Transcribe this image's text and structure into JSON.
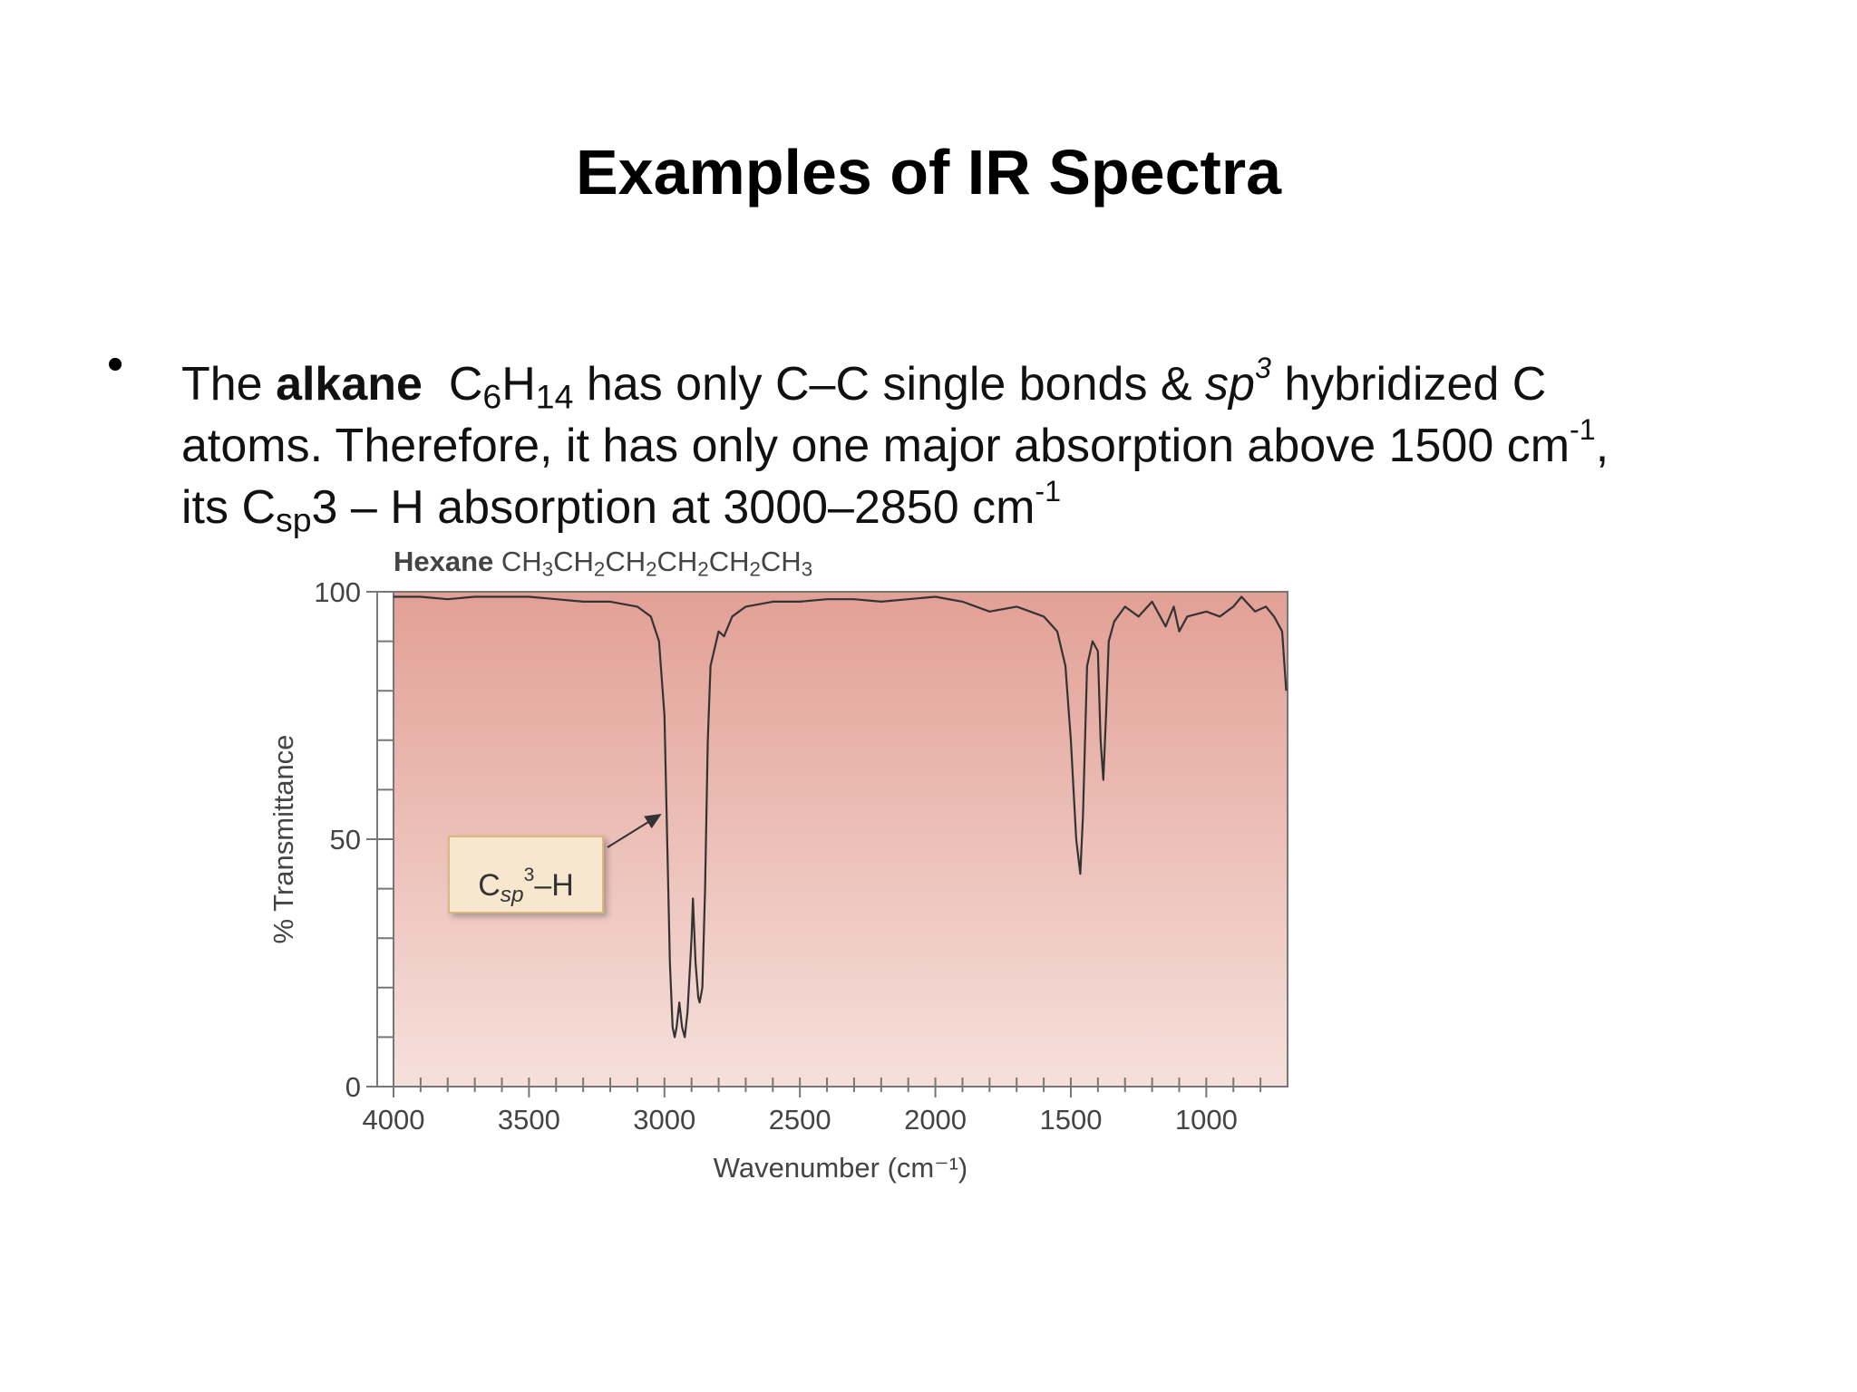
{
  "title": "Examples of IR Spectra",
  "bullet": "•",
  "lines": [
    [
      {
        "text": "The ",
        "style": "normal"
      },
      {
        "text": "alkane",
        "style": "bold"
      },
      {
        "text": "  C",
        "style": "normal"
      },
      {
        "text": "6",
        "style": "sub"
      },
      {
        "text": "H",
        "style": "normal"
      },
      {
        "text": "14",
        "style": "sub"
      },
      {
        "text": " has only C–C single bonds & ",
        "style": "normal"
      },
      {
        "text": "sp",
        "style": "italic"
      },
      {
        "text": "3",
        "style": "italic-sup"
      },
      {
        "text": " hybridized C",
        "style": "normal"
      }
    ],
    [
      {
        "text": "atoms. Therefore, it has only one major absorption above 1500 cm",
        "style": "normal"
      },
      {
        "text": "-1",
        "style": "sup"
      },
      {
        "text": ",",
        "style": "normal"
      }
    ],
    [
      {
        "text": "its C",
        "style": "normal"
      },
      {
        "text": "sp",
        "style": "sub"
      },
      {
        "text": "3 – H absorption at 3000–2850 cm",
        "style": "normal"
      },
      {
        "text": "-1",
        "style": "sup"
      }
    ]
  ],
  "chart_data": {
    "type": "line",
    "title_runs": [
      {
        "text": "Hexane",
        "style": "bold"
      },
      {
        "text": " CH",
        "style": "normal"
      },
      {
        "text": "3",
        "style": "sub"
      },
      {
        "text": "CH",
        "style": "normal"
      },
      {
        "text": "2",
        "style": "sub"
      },
      {
        "text": "CH",
        "style": "normal"
      },
      {
        "text": "2",
        "style": "sub"
      },
      {
        "text": "CH",
        "style": "normal"
      },
      {
        "text": "2",
        "style": "sub"
      },
      {
        "text": "CH",
        "style": "normal"
      },
      {
        "text": "2",
        "style": "sub"
      },
      {
        "text": "CH",
        "style": "normal"
      },
      {
        "text": "3",
        "style": "sub"
      }
    ],
    "xlabel": "Wavenumber (cm⁻¹)",
    "ylabel": "% Transmittance",
    "annotation_runs": [
      {
        "text": "C",
        "style": "normal"
      },
      {
        "text": "sp",
        "style": "italic-sub"
      },
      {
        "text": "3",
        "style": "sup"
      },
      {
        "text": "–H",
        "style": "normal"
      }
    ],
    "color": "#333333",
    "xlim": [
      4000,
      700
    ],
    "ylim": [
      0,
      100
    ],
    "xticks": [
      4000,
      3500,
      3000,
      2500,
      2000,
      1500,
      1000
    ],
    "xminorticks": [
      3900,
      3800,
      3700,
      3600,
      3400,
      3300,
      3200,
      3100,
      2900,
      2800,
      2700,
      2600,
      2400,
      2300,
      2200,
      2100,
      1900,
      1800,
      1700,
      1600,
      1400,
      1300,
      1200,
      1100,
      900,
      800
    ],
    "yticks": [
      0,
      50,
      100
    ],
    "yminorticks": [
      10,
      20,
      30,
      40,
      60,
      70,
      80,
      90
    ],
    "x": [
      4000,
      3900,
      3800,
      3700,
      3600,
      3500,
      3400,
      3300,
      3200,
      3100,
      3050,
      3020,
      3000,
      2990,
      2980,
      2970,
      2962,
      2955,
      2945,
      2935,
      2925,
      2915,
      2900,
      2895,
      2885,
      2875,
      2870,
      2860,
      2850,
      2840,
      2830,
      2800,
      2780,
      2750,
      2700,
      2600,
      2500,
      2400,
      2300,
      2200,
      2100,
      2000,
      1900,
      1800,
      1700,
      1650,
      1600,
      1550,
      1520,
      1500,
      1480,
      1465,
      1455,
      1440,
      1420,
      1400,
      1390,
      1380,
      1370,
      1360,
      1340,
      1300,
      1250,
      1200,
      1150,
      1120,
      1100,
      1070,
      1000,
      950,
      900,
      870,
      820,
      780,
      750,
      720,
      705
    ],
    "values": [
      99,
      99,
      98.5,
      99,
      99,
      99,
      98.5,
      98,
      98,
      97,
      95,
      90,
      75,
      50,
      25,
      12,
      10,
      12,
      17,
      12,
      10,
      15,
      30,
      38,
      25,
      18,
      17,
      20,
      40,
      70,
      85,
      92,
      91,
      95,
      97,
      98,
      98,
      98.5,
      98.5,
      98,
      98.5,
      99,
      98,
      96,
      97,
      96,
      95,
      92,
      85,
      70,
      50,
      43,
      55,
      85,
      90,
      88,
      70,
      62,
      75,
      90,
      94,
      97,
      95,
      98,
      93,
      97,
      92,
      95,
      96,
      95,
      97,
      99,
      96,
      97,
      95,
      92,
      80
    ]
  }
}
